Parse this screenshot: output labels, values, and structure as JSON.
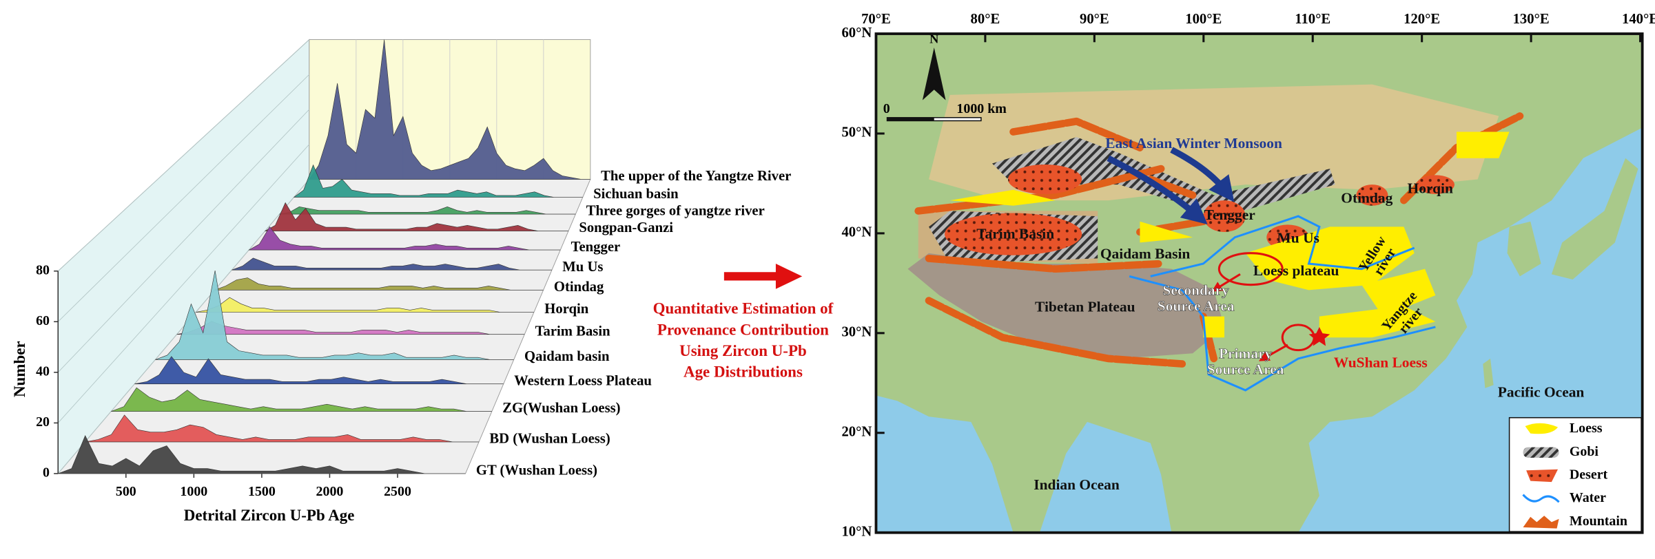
{
  "chart_data": {
    "type": "ridgeline",
    "xlabel": "Detrital Zircon U-Pb Age",
    "ylabel": "Number",
    "xlim": [
      0,
      3000
    ],
    "ylim": [
      0,
      80
    ],
    "xticks": [
      500,
      1000,
      1500,
      2000,
      2500
    ],
    "yticks": [
      0,
      20,
      40,
      60,
      80
    ],
    "x": [
      0,
      100,
      200,
      300,
      400,
      500,
      600,
      700,
      800,
      900,
      1000,
      1100,
      1200,
      1300,
      1400,
      1500,
      1600,
      1700,
      1800,
      1900,
      2000,
      2100,
      2200,
      2300,
      2400,
      2500,
      2600,
      2700,
      2800,
      2900,
      3000
    ],
    "series": [
      {
        "name": "The upper of the Yangtze River",
        "color": "#525c8f",
        "values": [
          0,
          8,
          25,
          55,
          20,
          15,
          40,
          35,
          80,
          25,
          36,
          15,
          8,
          5,
          6,
          8,
          10,
          12,
          18,
          30,
          15,
          8,
          6,
          5,
          8,
          12,
          5,
          2,
          1,
          0,
          0
        ]
      },
      {
        "name": "Sichuan basin",
        "color": "#2f9c8c",
        "values": [
          0,
          4,
          18,
          5,
          6,
          10,
          4,
          3,
          2,
          2,
          2,
          1,
          1,
          1,
          2,
          2,
          2,
          4,
          3,
          2,
          3,
          1,
          1,
          1,
          2,
          3,
          1,
          0,
          0,
          0,
          0
        ]
      },
      {
        "name": "Three gorges of yangtze river",
        "color": "#44a060",
        "values": [
          0,
          1,
          4,
          3,
          2,
          2,
          2,
          2,
          2,
          1,
          1,
          1,
          1,
          1,
          1,
          1,
          2,
          4,
          2,
          1,
          2,
          1,
          1,
          1,
          1,
          2,
          1,
          0,
          0,
          0,
          0
        ]
      },
      {
        "name": "Songpan-Ganzi",
        "color": "#a0343e",
        "values": [
          0,
          3,
          15,
          6,
          12,
          4,
          2,
          2,
          2,
          1,
          1,
          1,
          1,
          1,
          1,
          2,
          2,
          4,
          3,
          2,
          3,
          2,
          1,
          1,
          2,
          3,
          1,
          0,
          0,
          0,
          0
        ]
      },
      {
        "name": "Tengger",
        "color": "#9245a2",
        "values": [
          0,
          3,
          12,
          5,
          3,
          2,
          2,
          1,
          1,
          1,
          1,
          1,
          1,
          1,
          1,
          1,
          2,
          2,
          3,
          2,
          2,
          1,
          1,
          1,
          1,
          2,
          1,
          0,
          0,
          0,
          0
        ]
      },
      {
        "name": "Mu Us",
        "color": "#42528f",
        "values": [
          0,
          2,
          6,
          4,
          2,
          2,
          2,
          1,
          1,
          1,
          1,
          1,
          1,
          1,
          1,
          2,
          2,
          3,
          2,
          2,
          3,
          2,
          1,
          1,
          2,
          3,
          1,
          0,
          0,
          0,
          0
        ]
      },
      {
        "name": "Otindag",
        "color": "#a2a244",
        "values": [
          0,
          2,
          5,
          6,
          3,
          2,
          2,
          1,
          1,
          1,
          1,
          1,
          1,
          1,
          1,
          1,
          2,
          2,
          2,
          1,
          2,
          1,
          1,
          1,
          1,
          2,
          1,
          0,
          0,
          0,
          0
        ]
      },
      {
        "name": "Horqin",
        "color": "#f2ee62",
        "values": [
          0,
          1,
          3,
          7,
          4,
          2,
          2,
          1,
          1,
          1,
          1,
          1,
          1,
          1,
          1,
          1,
          1,
          2,
          2,
          1,
          2,
          1,
          1,
          1,
          1,
          1,
          1,
          0,
          0,
          0,
          0
        ]
      },
      {
        "name": "Tarim Basin",
        "color": "#d274c2",
        "values": [
          0,
          1,
          3,
          6,
          4,
          3,
          2,
          2,
          2,
          2,
          2,
          2,
          1,
          1,
          1,
          1,
          2,
          2,
          2,
          1,
          2,
          1,
          1,
          1,
          1,
          1,
          1,
          0,
          0,
          0,
          0
        ]
      },
      {
        "name": "Qaidam basin",
        "color": "#86ccd4",
        "values": [
          0,
          2,
          8,
          25,
          12,
          40,
          8,
          4,
          3,
          2,
          2,
          2,
          1,
          1,
          1,
          2,
          2,
          3,
          2,
          2,
          3,
          1,
          1,
          1,
          1,
          2,
          1,
          1,
          0,
          0,
          0
        ]
      },
      {
        "name": "Western Loess Plateau",
        "color": "#3552a2",
        "values": [
          0,
          1,
          4,
          12,
          5,
          3,
          11,
          4,
          3,
          2,
          2,
          2,
          1,
          1,
          1,
          2,
          2,
          3,
          2,
          1,
          2,
          1,
          1,
          1,
          1,
          2,
          1,
          0,
          0,
          0,
          0
        ]
      },
      {
        "name": "ZG(Wushan Loess)",
        "color": "#74b444",
        "values": [
          0,
          2,
          10,
          6,
          4,
          5,
          9,
          5,
          4,
          3,
          2,
          1,
          2,
          1,
          1,
          1,
          2,
          3,
          2,
          1,
          2,
          1,
          1,
          1,
          1,
          2,
          1,
          1,
          0,
          0,
          0
        ]
      },
      {
        "name": "BD (Wushan Loess)",
        "color": "#e25454",
        "values": [
          0,
          1,
          3,
          11,
          5,
          4,
          4,
          5,
          7,
          6,
          3,
          2,
          1,
          2,
          1,
          1,
          1,
          2,
          2,
          2,
          3,
          1,
          1,
          1,
          1,
          2,
          1,
          1,
          0,
          0,
          0
        ]
      },
      {
        "name": "GT (Wushan Loess)",
        "color": "#444444",
        "values": [
          0,
          2,
          15,
          4,
          3,
          6,
          3,
          9,
          11,
          4,
          2,
          2,
          1,
          1,
          1,
          1,
          1,
          2,
          3,
          2,
          3,
          1,
          1,
          1,
          1,
          2,
          1,
          0,
          0,
          0,
          0
        ]
      }
    ]
  },
  "arrow_text": {
    "lines": [
      "Quantitative Estimation of",
      "Provenance Contribution",
      "Using Zircon U-Pb",
      "Age Distributions"
    ]
  },
  "map": {
    "lon_ticks": [
      {
        "value": 70,
        "label": "70°E"
      },
      {
        "value": 80,
        "label": "80°E"
      },
      {
        "value": 90,
        "label": "90°E"
      },
      {
        "value": 100,
        "label": "100°E"
      },
      {
        "value": 110,
        "label": "110°E"
      },
      {
        "value": 120,
        "label": "120°E"
      },
      {
        "value": 130,
        "label": "130°E"
      },
      {
        "value": 140,
        "label": "140°E"
      }
    ],
    "lat_ticks": [
      {
        "value": 60,
        "label": "60°N"
      },
      {
        "value": 50,
        "label": "50°N"
      },
      {
        "value": 40,
        "label": "40°N"
      },
      {
        "value": 30,
        "label": "30°N"
      },
      {
        "value": 20,
        "label": "20°N"
      },
      {
        "value": 10,
        "label": "10°N"
      }
    ],
    "north": "N",
    "scale_bar": [
      "0",
      "1000 km"
    ],
    "labels": [
      [
        "East Asian Winter Monsoon"
      ],
      [
        "Tengger"
      ],
      [
        "Mu Us"
      ],
      [
        "Otindag"
      ],
      [
        "Horqin"
      ],
      [
        "Tarim Basin"
      ],
      [
        "Qaidam Basin"
      ],
      [
        "Loess plateau"
      ],
      [
        "Yellow",
        "river"
      ],
      [
        "Yangtze",
        "river"
      ],
      [
        "Tibetan Plateau"
      ],
      [
        "Secondary",
        "Source Area"
      ],
      [
        "Primary",
        "Source Area"
      ],
      [
        "WuShan Loess"
      ],
      [
        "Pacific Ocean"
      ],
      [
        "Indian Ocean"
      ]
    ],
    "legend": [
      "Loess",
      "Gobi",
      "Desert",
      "Water",
      "Mountain"
    ]
  }
}
